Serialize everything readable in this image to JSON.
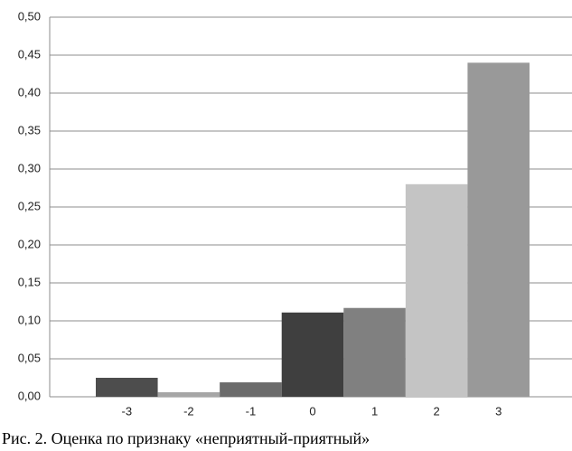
{
  "chart_data": {
    "type": "bar",
    "caption": "Рис. 2. Оценка по признаку «неприятный-приятный»",
    "categories": [
      "-3",
      "-2",
      "-1",
      "0",
      "1",
      "2",
      "3"
    ],
    "values": [
      0.025,
      0.006,
      0.019,
      0.111,
      0.117,
      0.28,
      0.44
    ],
    "colors": [
      "#4d4d4d",
      "#a6a6a6",
      "#6b6b6b",
      "#3f3f3f",
      "#808080",
      "#c4c4c4",
      "#999999"
    ],
    "ylim": [
      0,
      0.5
    ],
    "yticks": [
      {
        "value": 0,
        "label": "0,00"
      },
      {
        "value": 0.05,
        "label": "0,05"
      },
      {
        "value": 0.1,
        "label": "0,10"
      },
      {
        "value": 0.15,
        "label": "0,15"
      },
      {
        "value": 0.2,
        "label": "0,20"
      },
      {
        "value": 0.25,
        "label": "0,25"
      },
      {
        "value": 0.3,
        "label": "0,30"
      },
      {
        "value": 0.35,
        "label": "0,35"
      },
      {
        "value": 0.4,
        "label": "0,40"
      },
      {
        "value": 0.45,
        "label": "0,45"
      },
      {
        "value": 0.5,
        "label": "0,50"
      }
    ],
    "grid": true
  }
}
